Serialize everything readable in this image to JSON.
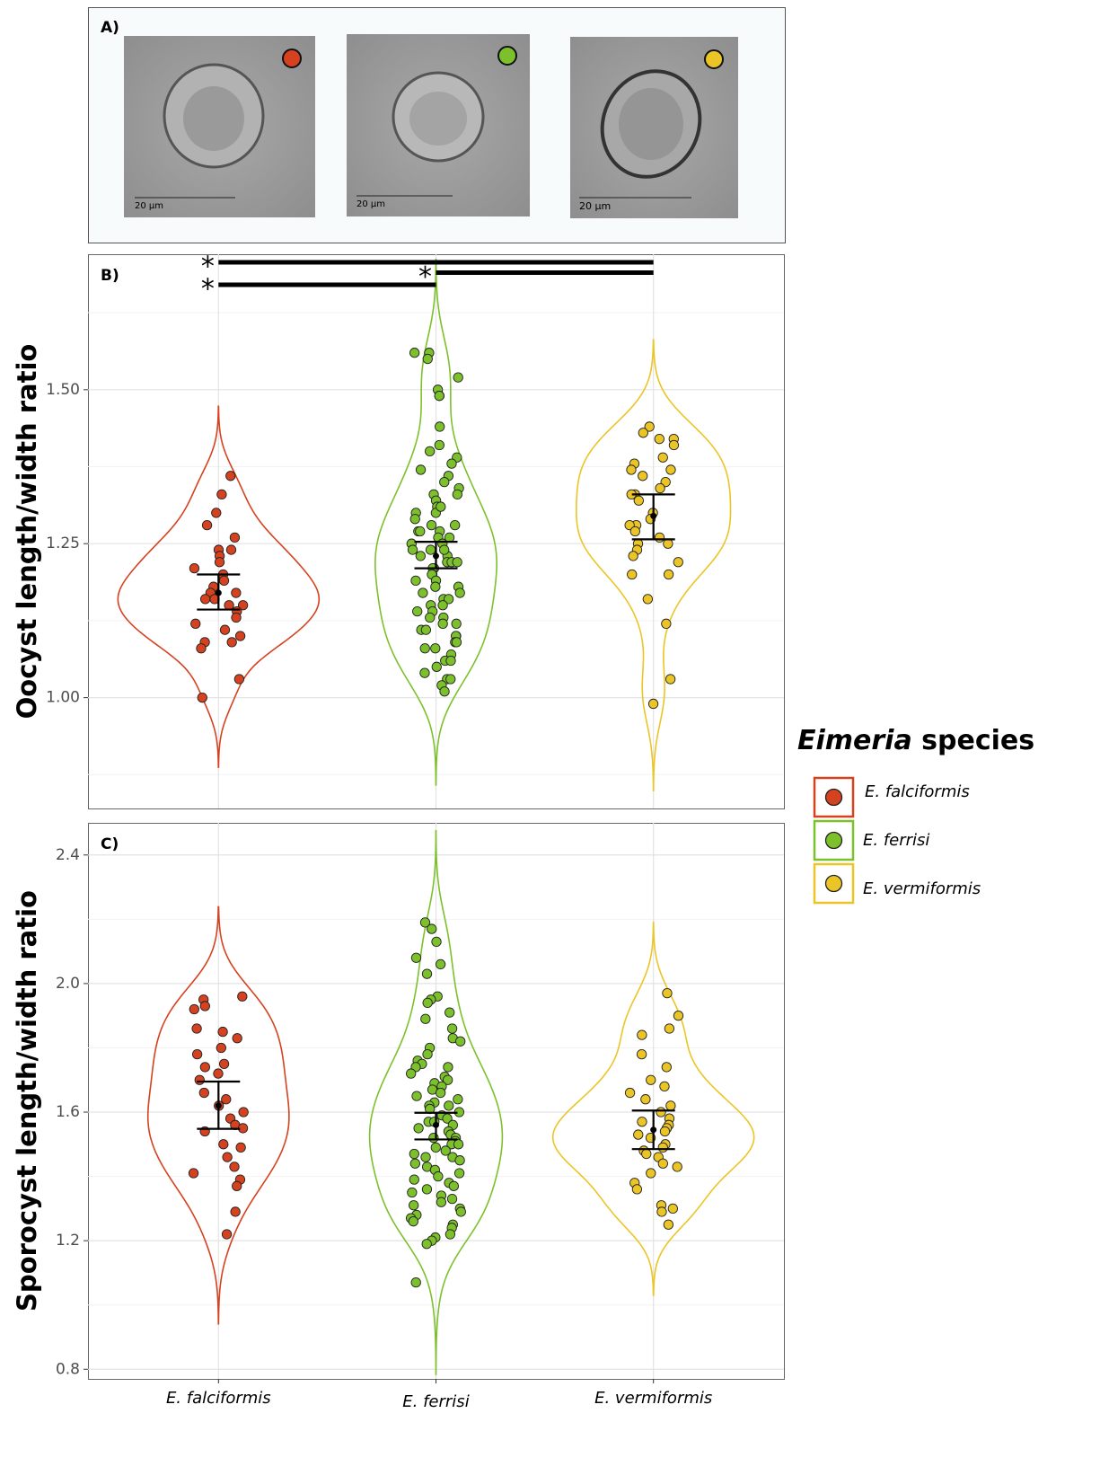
{
  "panel_a": {
    "label": "A)",
    "images": [
      {
        "scale_label": "20 µm"
      },
      {
        "scale_label": "20 µm"
      },
      {
        "scale_label": "20 µm"
      }
    ]
  },
  "legend": {
    "title_italic": "Eimeria",
    "title_rest": "species"
  },
  "chart_data": [
    {
      "type": "violin",
      "panel_label": "B)",
      "y_label": "Oocyst length/width ratio",
      "ylim": [
        0.82,
        1.72
      ],
      "yticks": [
        {
          "value": 1,
          "label": "1.00"
        },
        {
          "value": 1.25,
          "label": "1.25"
        },
        {
          "value": 1.5,
          "label": "1.50"
        }
      ],
      "minor_yticks": [
        0.875,
        1.125,
        1.375,
        1.625
      ],
      "grid": true,
      "series": [
        {
          "name": "E. falciformis",
          "color": "#d5421f",
          "mean": 1.17,
          "ci": [
            1.143,
            1.2
          ],
          "values": [
            1.36,
            1.33,
            1.3,
            1.28,
            1.26,
            1.24,
            1.24,
            1.23,
            1.22,
            1.21,
            1.2,
            1.19,
            1.18,
            1.17,
            1.17,
            1.16,
            1.16,
            1.15,
            1.15,
            1.14,
            1.13,
            1.12,
            1.11,
            1.1,
            1.09,
            1.09,
            1.08,
            1.03,
            1.0
          ]
        },
        {
          "name": "E. ferrisi",
          "color": "#7cc12b",
          "mean": 1.23,
          "ci": [
            1.21,
            1.253
          ],
          "values": [
            1.56,
            1.56,
            1.55,
            1.52,
            1.5,
            1.49,
            1.49,
            1.44,
            1.41,
            1.4,
            1.39,
            1.38,
            1.37,
            1.36,
            1.35,
            1.34,
            1.33,
            1.33,
            1.32,
            1.31,
            1.3,
            1.3,
            1.29,
            1.28,
            1.28,
            1.27,
            1.27,
            1.26,
            1.26,
            1.25,
            1.25,
            1.24,
            1.24,
            1.23,
            1.23,
            1.22,
            1.22,
            1.21,
            1.21,
            1.2,
            1.2,
            1.19,
            1.19,
            1.18,
            1.18,
            1.17,
            1.17,
            1.16,
            1.16,
            1.15,
            1.15,
            1.14,
            1.14,
            1.13,
            1.13,
            1.12,
            1.12,
            1.11,
            1.1,
            1.1,
            1.09,
            1.08,
            1.08,
            1.07,
            1.06,
            1.05,
            1.04,
            1.03,
            1.03,
            1.02,
            1.01,
            1.06,
            1.09,
            1.11,
            1.22,
            1.24,
            1.27,
            1.31
          ]
        },
        {
          "name": "E. vermiformis",
          "color": "#ebc526",
          "mean": 1.295,
          "ci": [
            1.257,
            1.33
          ],
          "values": [
            1.44,
            1.43,
            1.42,
            1.42,
            1.41,
            1.39,
            1.38,
            1.37,
            1.37,
            1.36,
            1.35,
            1.34,
            1.33,
            1.33,
            1.32,
            1.3,
            1.29,
            1.28,
            1.28,
            1.27,
            1.26,
            1.25,
            1.25,
            1.24,
            1.23,
            1.22,
            1.2,
            1.2,
            1.16,
            1.12,
            1.03,
            0.99
          ]
        }
      ],
      "annotations": [
        {
          "label": "*",
          "span": [
            "E. falciformis",
            "E. vermiformis"
          ]
        },
        {
          "label": "*",
          "span": [
            "E. ferrisi",
            "E. vermiformis"
          ]
        },
        {
          "label": "*",
          "span": [
            "E. falciformis",
            "E. ferrisi"
          ]
        }
      ]
    },
    {
      "type": "violin",
      "panel_label": "C)",
      "y_label": "Sporocyst length/width ratio",
      "categories": [
        "E. falciformis",
        "E. ferrisi",
        "E. vermiformis"
      ],
      "ylim": [
        0.77,
        2.5
      ],
      "yticks": [
        0.8,
        1.2,
        1.6,
        {
          "value": 2,
          "label": "2.0"
        },
        2.4
      ],
      "minor_yticks": [
        1.0,
        1.4,
        1.8,
        2.2
      ],
      "grid": true,
      "series": [
        {
          "name": "E. falciformis",
          "color": "#d5421f",
          "mean": 1.62,
          "ci": [
            1.548,
            1.695
          ],
          "values": [
            1.96,
            1.95,
            1.93,
            1.92,
            1.86,
            1.85,
            1.83,
            1.8,
            1.78,
            1.75,
            1.74,
            1.72,
            1.7,
            1.66,
            1.64,
            1.62,
            1.6,
            1.58,
            1.56,
            1.55,
            1.54,
            1.5,
            1.49,
            1.46,
            1.43,
            1.41,
            1.39,
            1.37,
            1.29,
            1.22
          ]
        },
        {
          "name": "E. ferrisi",
          "color": "#7cc12b",
          "mean": 1.56,
          "ci": [
            1.515,
            1.598
          ],
          "values": [
            2.19,
            2.17,
            2.13,
            2.08,
            2.06,
            2.03,
            1.96,
            1.95,
            1.94,
            1.91,
            1.89,
            1.86,
            1.83,
            1.82,
            1.8,
            1.78,
            1.76,
            1.75,
            1.74,
            1.74,
            1.72,
            1.71,
            1.7,
            1.69,
            1.68,
            1.67,
            1.66,
            1.65,
            1.64,
            1.63,
            1.62,
            1.62,
            1.61,
            1.6,
            1.59,
            1.58,
            1.57,
            1.57,
            1.56,
            1.55,
            1.54,
            1.53,
            1.52,
            1.52,
            1.51,
            1.5,
            1.5,
            1.49,
            1.48,
            1.47,
            1.46,
            1.46,
            1.45,
            1.44,
            1.43,
            1.42,
            1.41,
            1.4,
            1.39,
            1.38,
            1.37,
            1.36,
            1.35,
            1.34,
            1.33,
            1.32,
            1.31,
            1.3,
            1.29,
            1.28,
            1.27,
            1.26,
            1.25,
            1.24,
            1.22,
            1.21,
            1.2,
            1.19,
            1.07
          ]
        },
        {
          "name": "E. vermiformis",
          "color": "#ebc526",
          "mean": 1.545,
          "ci": [
            1.485,
            1.605
          ],
          "values": [
            1.97,
            1.9,
            1.86,
            1.84,
            1.78,
            1.74,
            1.7,
            1.68,
            1.66,
            1.64,
            1.62,
            1.6,
            1.58,
            1.57,
            1.56,
            1.55,
            1.54,
            1.53,
            1.52,
            1.5,
            1.49,
            1.48,
            1.47,
            1.46,
            1.44,
            1.43,
            1.41,
            1.38,
            1.36,
            1.31,
            1.3,
            1.29,
            1.25
          ]
        }
      ]
    }
  ]
}
